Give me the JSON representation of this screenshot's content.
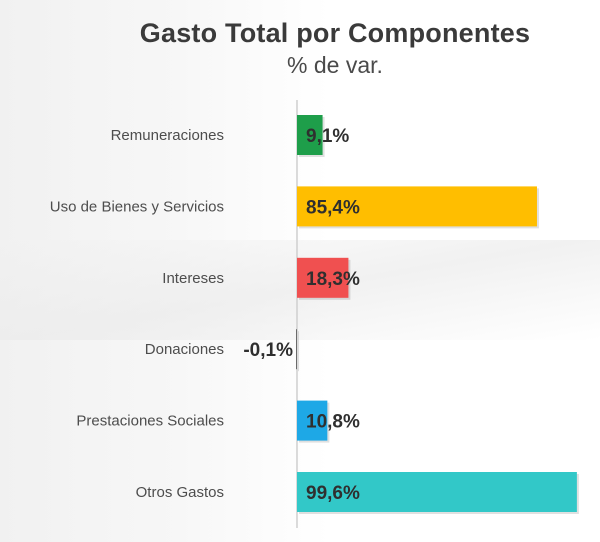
{
  "header": {
    "title": "Gasto Total por Componentes",
    "subtitle": "% de var."
  },
  "colors": {
    "remuneraciones": "#1e9e4a",
    "uso_bienes": "#ffbe00",
    "intereses": "#f05050",
    "donaciones": "#6b6b6b",
    "prestaciones": "#1ea8e6",
    "otros": "#32c8c8",
    "axis": "#cfcfcf"
  },
  "chart_data": {
    "type": "bar",
    "orientation": "horizontal",
    "title": "Gasto Total por Componentes",
    "subtitle": "% de var.",
    "xlabel": "",
    "ylabel": "",
    "xlim": [
      0,
      100
    ],
    "grid": false,
    "categories": [
      "Remuneraciones",
      "Uso de Bienes y Servicios",
      "Intereses",
      "Donaciones",
      "Prestaciones Sociales",
      "Otros Gastos"
    ],
    "values": [
      9.1,
      85.4,
      18.3,
      -0.1,
      10.8,
      99.6
    ],
    "value_labels": [
      "9,1%",
      "85,4%",
      "18,3%",
      "-0,1%",
      "10,8%",
      "99,6%"
    ],
    "bar_colors": [
      "#1e9e4a",
      "#ffbe00",
      "#f05050",
      "#6b6b6b",
      "#1ea8e6",
      "#32c8c8"
    ]
  }
}
